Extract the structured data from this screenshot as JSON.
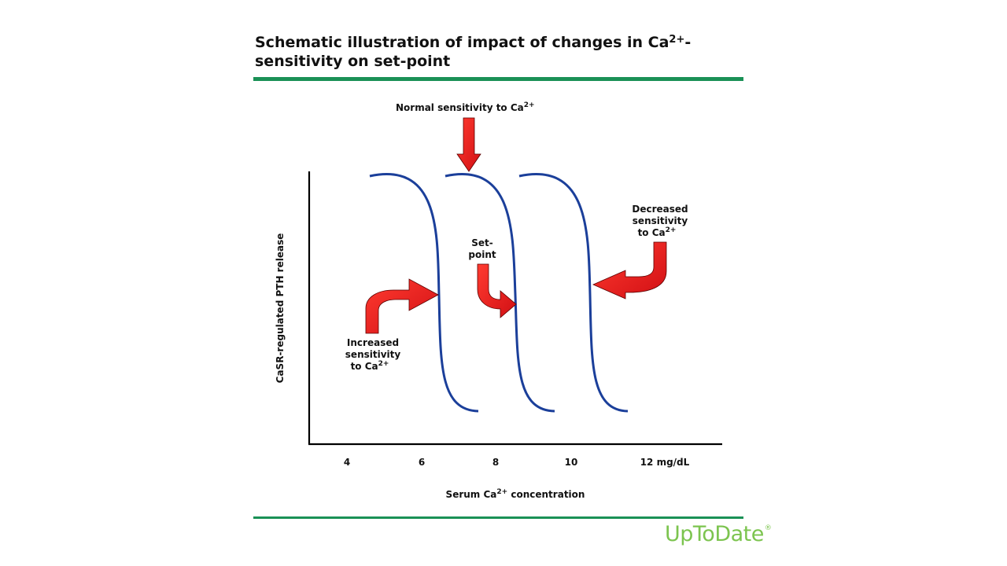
{
  "title": {
    "line1_pre": "Schematic illustration of impact of changes in Ca",
    "line1_sup": "2+",
    "line1_post": "-",
    "line2": "sensitivity on set-point"
  },
  "diagram": {
    "normal_label": "Normal sensitivity to Ca",
    "normal_sup": "2+",
    "setpoint_line1": "Set-",
    "setpoint_line2": "point",
    "increased_line1": "Increased",
    "increased_line2": "sensitivity",
    "increased_line3": "to Ca",
    "increased_sup": "2+",
    "decreased_line1": "Decreased",
    "decreased_line2": "sensitivity",
    "decreased_line3": "to Ca",
    "decreased_sup": "2+",
    "y_axis_label": "CaSR-regulated PTH release",
    "x_ticks": [
      "4",
      "6",
      "8",
      "10",
      "12 mg/dL"
    ],
    "x_axis_label_pre": "Serum Ca",
    "x_axis_label_sup": "2+",
    "x_axis_label_post": " concentration",
    "curve_color": "#1b3f9a",
    "arrow_color": "#e8141b",
    "arrow_outline": "#5a0000",
    "rule_color": "#1a9156"
  },
  "logo": {
    "text": "UpToDate",
    "mark": "®",
    "color": "#7cc44f"
  }
}
